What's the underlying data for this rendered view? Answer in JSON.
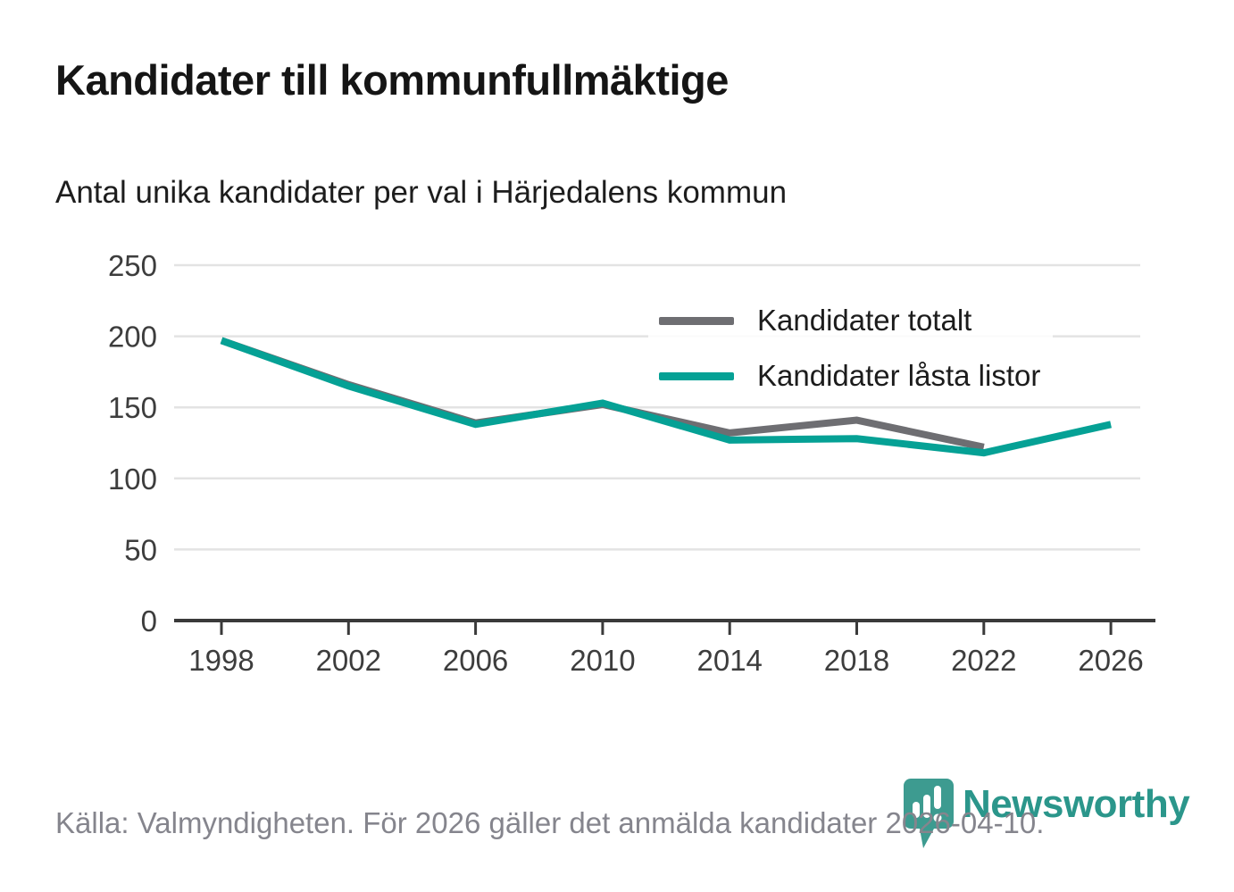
{
  "header": {
    "title": "Kandidater till kommunfullmäktige",
    "subtitle": "Antal unika kandidater per val i Härjedalens kommun"
  },
  "chart_data": {
    "type": "line",
    "x": [
      1998,
      2002,
      2006,
      2010,
      2014,
      2018,
      2022,
      2026
    ],
    "series": [
      {
        "name": "Kandidater totalt",
        "color": "#6e6e72",
        "values": [
          197,
          166,
          139,
          152,
          132,
          141,
          122,
          null
        ]
      },
      {
        "name": "Kandidater låsta listor",
        "color": "#05a195",
        "values": [
          197,
          165,
          138,
          153,
          127,
          128,
          118,
          138
        ]
      }
    ],
    "ylim": [
      0,
      250
    ],
    "yticks": [
      0,
      50,
      100,
      150,
      200,
      250
    ],
    "grid": true,
    "legend_position": "top-right",
    "axis_color": "#3a3a3a",
    "grid_color": "#e3e3e3",
    "tick_label_color": "#3d3d3d"
  },
  "footer": {
    "source": "Källa: Valmyndigheten. För 2026 gäller det anmälda kandidater 2026-04-10."
  },
  "branding": {
    "name": "Newsworthy",
    "wordmark_color": "#2b968b",
    "mark_color": "#3d9b90"
  }
}
